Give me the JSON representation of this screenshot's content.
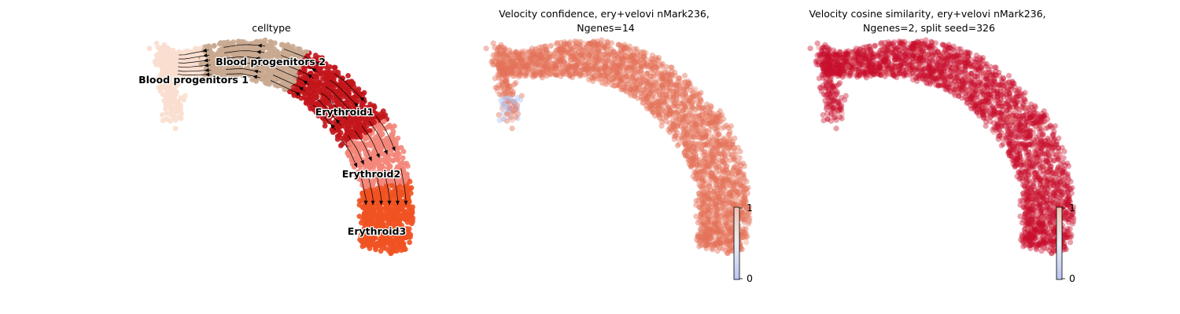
{
  "chart_data": [
    {
      "type": "scatter",
      "title": "celltype",
      "colored_by": "celltype",
      "overlay": "velocity streamlines with arrows",
      "categories": [
        "Blood progenitors 1",
        "Blood progenitors 2",
        "Erythroid1",
        "Erythroid2",
        "Erythroid3"
      ],
      "category_colors": {
        "Blood progenitors 1": "#f9decf",
        "Blood progenitors 2": "#c9a890",
        "Erythroid1": "#c3161c",
        "Erythroid2": "#f4867a",
        "Erythroid3": "#f15222"
      },
      "axes_visible": false
    },
    {
      "type": "scatter",
      "title_lines": [
        "Velocity confidence, ery+velovi nMark236,",
        "Ngenes=14"
      ],
      "colorbar": {
        "ticks": [
          "0",
          "1"
        ],
        "range": [
          0,
          1
        ],
        "colors": [
          "#bfc9f2",
          "#f0c6b6"
        ]
      },
      "point_colors": {
        "typical": "#e5745c",
        "low": "#aec4f5"
      },
      "axes_visible": false
    },
    {
      "type": "scatter",
      "title_lines": [
        "Velocity cosine similarity, ery+velovi nMark236,",
        "Ngenes=2, split seed=326"
      ],
      "colorbar": {
        "ticks": [
          "0",
          "1"
        ],
        "range": [
          0,
          1
        ],
        "colors": [
          "#bfc9f2",
          "#f0c6b6"
        ]
      },
      "point_colors": {
        "typical": "#c8102e"
      },
      "axes_visible": false
    }
  ]
}
